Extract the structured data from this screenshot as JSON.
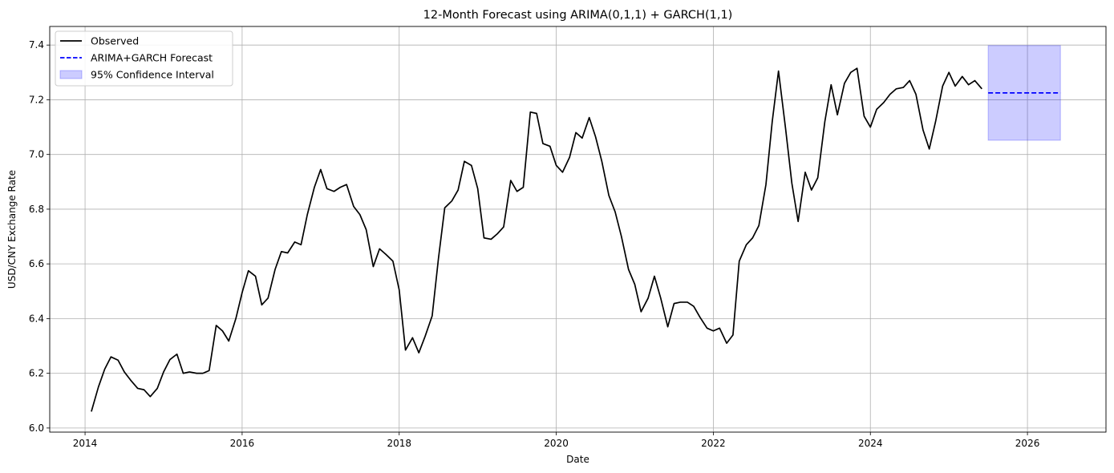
{
  "chart_data": {
    "type": "line",
    "title": "12-Month Forecast using ARIMA(0,1,1) + GARCH(1,1)",
    "xlabel": "Date",
    "ylabel": "USD/CNY Exchange Rate",
    "xlim": [
      2013.55,
      2027.0
    ],
    "ylim": [
      5.985,
      7.468
    ],
    "x_ticks": [
      2014,
      2016,
      2018,
      2020,
      2022,
      2024,
      2026
    ],
    "x_tick_labels": [
      "2014",
      "2016",
      "2018",
      "2020",
      "2022",
      "2024",
      "2026"
    ],
    "y_ticks": [
      6.0,
      6.2,
      6.4,
      6.6,
      6.8,
      7.0,
      7.2,
      7.4
    ],
    "y_tick_labels": [
      "6.0",
      "6.2",
      "6.4",
      "6.6",
      "6.8",
      "7.0",
      "7.2",
      "7.4"
    ],
    "grid": true,
    "legend_position": "top-left",
    "series": [
      {
        "name": "Observed",
        "style": "solid",
        "color": "#000000",
        "x": [
          2014.08,
          2014.17,
          2014.25,
          2014.33,
          2014.42,
          2014.5,
          2014.58,
          2014.67,
          2014.75,
          2014.83,
          2014.92,
          2015.0,
          2015.08,
          2015.17,
          2015.25,
          2015.33,
          2015.42,
          2015.5,
          2015.58,
          2015.67,
          2015.75,
          2015.83,
          2015.92,
          2016.0,
          2016.08,
          2016.17,
          2016.25,
          2016.33,
          2016.42,
          2016.5,
          2016.58,
          2016.67,
          2016.75,
          2016.83,
          2016.92,
          2017.0,
          2017.08,
          2017.17,
          2017.25,
          2017.33,
          2017.42,
          2017.5,
          2017.58,
          2017.67,
          2017.75,
          2017.83,
          2017.92,
          2018.0,
          2018.08,
          2018.17,
          2018.25,
          2018.33,
          2018.42,
          2018.5,
          2018.58,
          2018.67,
          2018.75,
          2018.83,
          2018.92,
          2019.0,
          2019.08,
          2019.17,
          2019.25,
          2019.33,
          2019.42,
          2019.5,
          2019.58,
          2019.67,
          2019.75,
          2019.83,
          2019.92,
          2020.0,
          2020.08,
          2020.17,
          2020.25,
          2020.33,
          2020.42,
          2020.5,
          2020.58,
          2020.67,
          2020.75,
          2020.83,
          2020.92,
          2021.0,
          2021.08,
          2021.17,
          2021.25,
          2021.33,
          2021.42,
          2021.5,
          2021.58,
          2021.67,
          2021.75,
          2021.83,
          2021.92,
          2022.0,
          2022.08,
          2022.17,
          2022.25,
          2022.33,
          2022.42,
          2022.5,
          2022.58,
          2022.67,
          2022.75,
          2022.83,
          2022.92,
          2023.0,
          2023.08,
          2023.17,
          2023.25,
          2023.33,
          2023.42,
          2023.5,
          2023.58,
          2023.67,
          2023.75,
          2023.83,
          2023.92,
          2024.0,
          2024.08,
          2024.17,
          2024.25,
          2024.33,
          2024.42,
          2024.5,
          2024.58,
          2024.67,
          2024.75,
          2024.83,
          2024.92,
          2025.0,
          2025.08,
          2025.17,
          2025.25,
          2025.33,
          2025.42
        ],
        "y": [
          6.06,
          6.15,
          6.215,
          6.26,
          6.248,
          6.205,
          6.175,
          6.145,
          6.14,
          6.115,
          6.145,
          6.205,
          6.25,
          6.27,
          6.2,
          6.205,
          6.2,
          6.2,
          6.21,
          6.375,
          6.355,
          6.318,
          6.4,
          6.495,
          6.575,
          6.555,
          6.45,
          6.475,
          6.58,
          6.645,
          6.64,
          6.68,
          6.67,
          6.78,
          6.88,
          6.945,
          6.875,
          6.865,
          6.88,
          6.89,
          6.81,
          6.78,
          6.725,
          6.59,
          6.655,
          6.635,
          6.61,
          6.505,
          6.285,
          6.33,
          6.275,
          6.335,
          6.41,
          6.62,
          6.805,
          6.83,
          6.87,
          6.975,
          6.96,
          6.875,
          6.695,
          6.69,
          6.71,
          6.735,
          6.905,
          6.865,
          6.88,
          7.155,
          7.15,
          7.04,
          7.03,
          6.96,
          6.935,
          6.99,
          7.08,
          7.06,
          7.135,
          7.065,
          6.975,
          6.85,
          6.79,
          6.7,
          6.58,
          6.525,
          6.425,
          6.475,
          6.555,
          6.475,
          6.37,
          6.455,
          6.46,
          6.46,
          6.445,
          6.405,
          6.365,
          6.355,
          6.365,
          6.31,
          6.34,
          6.61,
          6.67,
          6.695,
          6.74,
          6.89,
          7.12,
          7.305,
          7.095,
          6.895,
          6.755,
          6.935,
          6.87,
          6.915,
          7.12,
          7.255,
          7.145,
          7.26,
          7.3,
          7.315,
          7.14,
          7.1,
          7.165,
          7.19,
          7.22,
          7.24,
          7.245,
          7.27,
          7.22,
          7.09,
          7.02,
          7.12,
          7.25,
          7.3,
          7.25,
          7.285,
          7.255,
          7.27,
          7.24
        ]
      },
      {
        "name": "ARIMA+GARCH Forecast",
        "style": "dashed",
        "color": "#0000ff",
        "x": [
          2025.5,
          2025.58,
          2025.67,
          2025.75,
          2025.83,
          2025.92,
          2026.0,
          2026.08,
          2026.17,
          2026.25,
          2026.33,
          2026.42
        ],
        "y": [
          7.225,
          7.225,
          7.225,
          7.225,
          7.225,
          7.225,
          7.225,
          7.225,
          7.225,
          7.225,
          7.225,
          7.225
        ]
      }
    ],
    "confidence_interval": {
      "name": "95% Confidence Interval",
      "color": "#0000ff",
      "x_start": 2025.5,
      "x_end": 2026.42,
      "lower": 7.052,
      "upper": 7.398
    }
  }
}
